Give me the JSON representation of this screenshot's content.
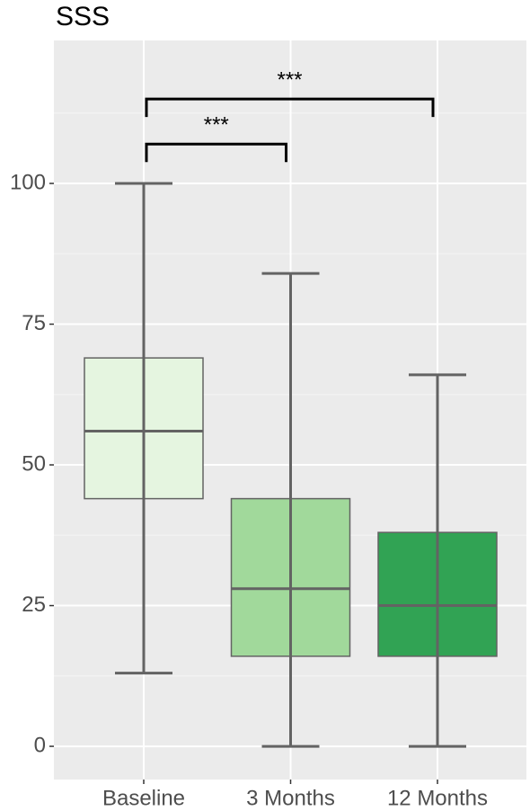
{
  "chart_data": {
    "type": "box",
    "title": "SSS",
    "categories": [
      "Baseline",
      "3 Months",
      "12 Months"
    ],
    "colors": [
      "#e5f5e0",
      "#a1d99b",
      "#31a354"
    ],
    "boxes": [
      {
        "min": 13,
        "q1": 44,
        "median": 56,
        "q3": 69,
        "max": 100
      },
      {
        "min": 0,
        "q1": 16,
        "median": 28,
        "q3": 44,
        "max": 84
      },
      {
        "min": 0,
        "q1": 16,
        "median": 25,
        "q3": 38,
        "max": 66
      }
    ],
    "ylim": [
      -5.9,
      125.4
    ],
    "yticks": [
      0,
      25,
      50,
      75,
      100
    ],
    "grid": true,
    "comparisons": [
      {
        "between": [
          "Baseline",
          "3 Months"
        ],
        "y": 107,
        "label": "***"
      },
      {
        "between": [
          "Baseline",
          "12 Months"
        ],
        "y": 115,
        "label": "***"
      }
    ]
  }
}
